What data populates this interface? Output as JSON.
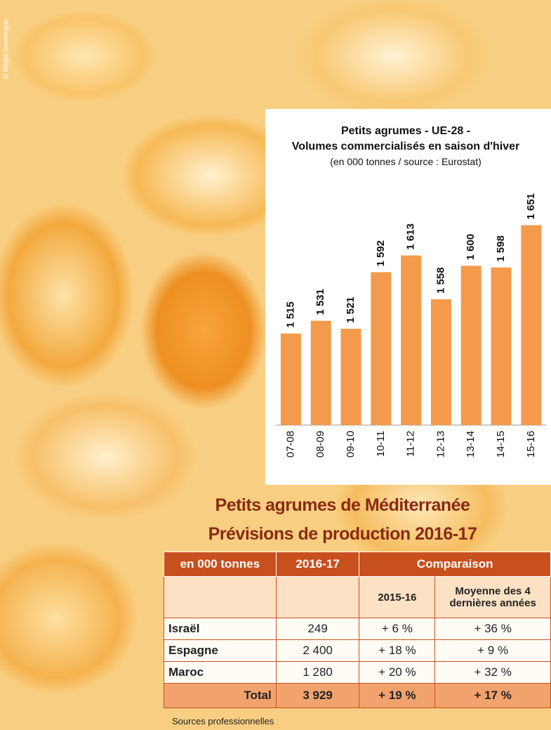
{
  "credit": "© Régis Domergue",
  "chart_data": {
    "type": "bar",
    "title": "Petits agrumes - UE-28 - Volumes commercialisés en saison d'hiver",
    "subtitle": "(en 000 tonnes / source : Eurostat)",
    "categories": [
      "07-08",
      "08-09",
      "09-10",
      "10-11",
      "11-12",
      "12-13",
      "13-14",
      "14-15",
      "15-16"
    ],
    "values": [
      1515,
      1531,
      1521,
      1592,
      1613,
      1558,
      1600,
      1598,
      1651
    ],
    "value_labels": [
      "1 515",
      "1 531",
      "1 521",
      "1 592",
      "1 613",
      "1 558",
      "1 600",
      "1 598",
      "1 651"
    ],
    "color": "#f39a4c",
    "ylim": [
      1400,
      1700
    ]
  },
  "table": {
    "title": [
      "Petits agrumes de Méditerranée",
      "Prévisions de production 2016-17"
    ],
    "header": [
      "en 000 tonnes",
      "2016-17",
      "Comparaison"
    ],
    "subheader": [
      "2015-16",
      "Moyenne des 4 dernières années"
    ],
    "rows": [
      [
        "Israël",
        "249",
        "+ 6 %",
        "+ 36 %"
      ],
      [
        "Espagne",
        "2 400",
        "+ 18 %",
        "+ 9 %"
      ],
      [
        "Maroc",
        "1 280",
        "+ 20 %",
        "+ 32 %"
      ],
      [
        "Total",
        "3 929",
        "+ 19 %",
        "+ 17 %"
      ]
    ],
    "source": "Sources professionnelles"
  }
}
